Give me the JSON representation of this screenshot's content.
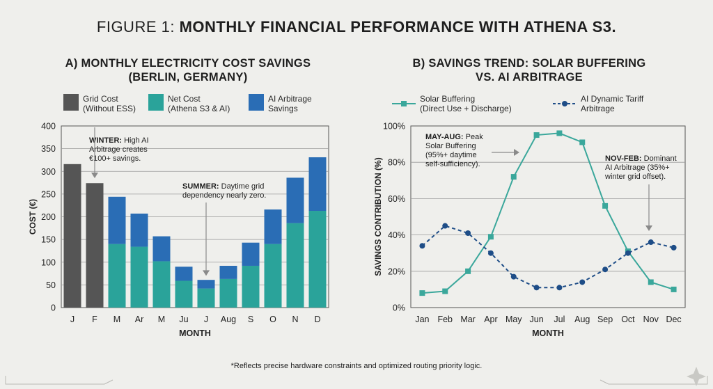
{
  "figure": {
    "title_prefix": "FIGURE 1:",
    "title_main": "MONTHLY FINANCIAL PERFORMANCE WITH ATHENA S3.",
    "footnote": "*Reflects precise hardware constraints and optimized routing priority logic."
  },
  "colors": {
    "grid_cost": "#555555",
    "net_cost": "#2aa39a",
    "ai_savings": "#2a6db5",
    "solar_line": "#3aa79b",
    "ai_line": "#1e4d87",
    "background": "#efefec"
  },
  "chart_data": [
    {
      "type": "bar",
      "stacked": true,
      "title_line1": "A) MONTHLY ELECTRICITY COST SAVINGS",
      "title_line2": "(BERLIN, GERMANY)",
      "categories": [
        "J",
        "F",
        "M",
        "Ar",
        "M",
        "Ju",
        "J",
        "Aug",
        "S",
        "O",
        "N",
        "D"
      ],
      "series": [
        {
          "name_line1": "Grid Cost",
          "name_line2": "(Without ESS)",
          "values": [
            316,
            274,
            0,
            0,
            0,
            0,
            0,
            0,
            0,
            0,
            0,
            0
          ]
        },
        {
          "name_line1": "Net Cost",
          "name_line2": "(Athena S3 & AI)",
          "values": [
            0,
            0,
            140,
            134,
            102,
            59,
            42,
            63,
            92,
            140,
            186,
            213
          ]
        },
        {
          "name_line1": "AI Arbitrage",
          "name_line2": "Savings",
          "values": [
            0,
            0,
            104,
            73,
            55,
            31,
            19,
            29,
            51,
            76,
            100,
            118
          ]
        }
      ],
      "xlabel": "MONTH",
      "ylabel": "COST (€)",
      "ylim": [
        0,
        400
      ],
      "yticks": [
        0,
        50,
        100,
        150,
        200,
        250,
        300,
        350,
        400
      ],
      "grid": "horizontal",
      "legend_placement": "top",
      "annotations": [
        {
          "bold": "WINTER:",
          "text1": " High AI",
          "text2": "Arbitrage creates",
          "text3": "€100+ savings.",
          "target_category": "F",
          "target_value": 285
        },
        {
          "bold": "SUMMER:",
          "text1": " Daytime grid",
          "text2": "dependency nearly zero.",
          "target_category": "J",
          "target_value": 70
        }
      ]
    },
    {
      "type": "line",
      "title_line1": "B) SAVINGS TREND: SOLAR BUFFERING",
      "title_line2": "VS. AI ARBITRAGE",
      "categories": [
        "Jan",
        "Feb",
        "Mar",
        "Apr",
        "May",
        "Jun",
        "Jul",
        "Aug",
        "Sep",
        "Oct",
        "Nov",
        "Dec"
      ],
      "series": [
        {
          "name_line1": "Solar Buffering",
          "name_line2": "(Direct Use + Discharge)",
          "style": "solid",
          "marker": "square",
          "values": [
            8,
            9,
            20,
            39,
            72,
            95,
            96,
            91,
            56,
            31,
            14,
            10
          ]
        },
        {
          "name_line1": "AI Dynamic Tariff",
          "name_line2": "Arbitrage",
          "style": "dashed",
          "marker": "circle",
          "values": [
            34,
            45,
            41,
            30,
            17,
            11,
            11,
            14,
            21,
            30,
            36,
            33
          ]
        }
      ],
      "xlabel": "MONTH",
      "ylabel": "SAVINGS CONTRIBUTION (%)",
      "ylim": [
        0,
        100
      ],
      "yticks": [
        0,
        20,
        40,
        60,
        80,
        100
      ],
      "ytick_labels": [
        "0%",
        "20%",
        "40%",
        "60%",
        "80%",
        "100%"
      ],
      "grid": "horizontal",
      "legend_placement": "top",
      "annotations": [
        {
          "bold": "MAY-AUG:",
          "text1": " Peak",
          "text2": "Solar Buffering",
          "text3": "(95%+ daytime",
          "text4": "self-sufficiency)."
        },
        {
          "bold": "NOV-FEB:",
          "text1": " Dominant",
          "text2": "AI Arbitrage (35%+",
          "text3": "winter grid offset)."
        }
      ]
    }
  ]
}
